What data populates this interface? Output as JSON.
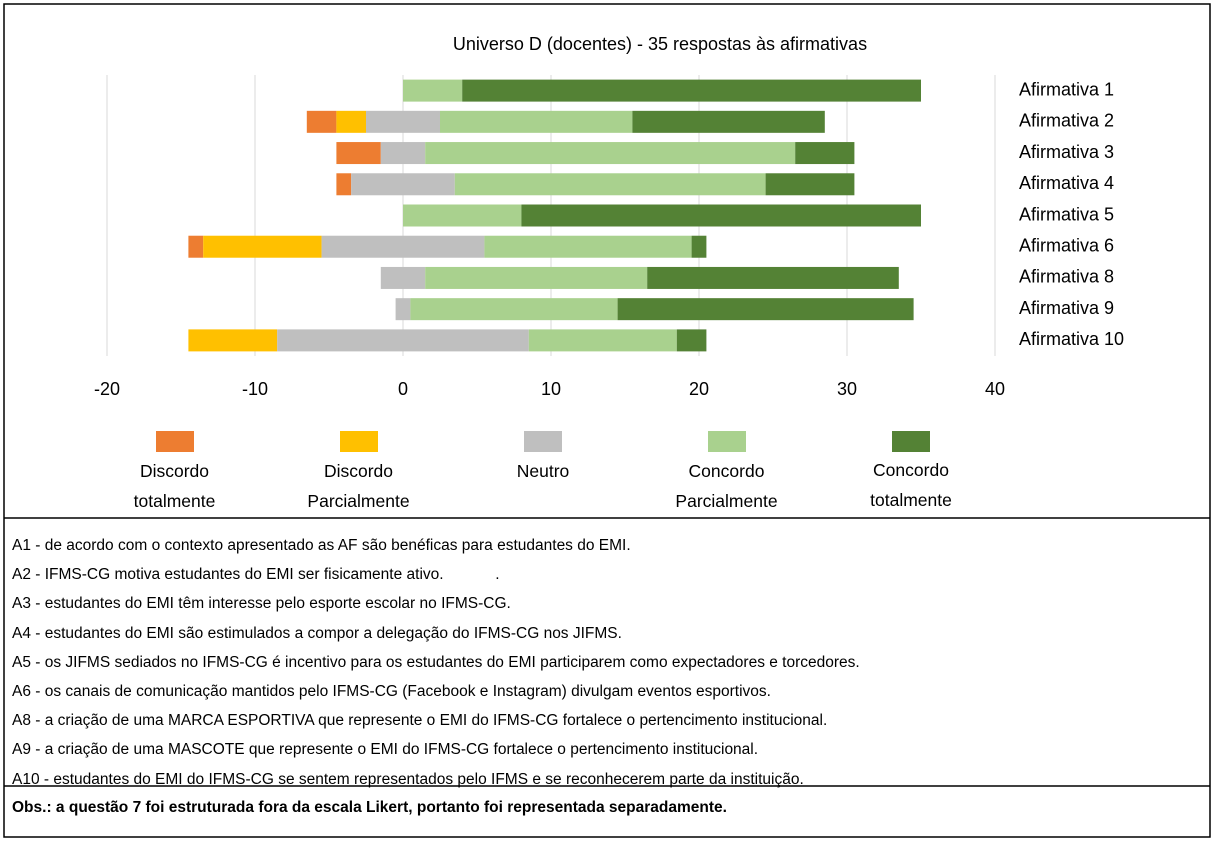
{
  "chart_data": {
    "type": "diverging-bar",
    "title": "Universo D (docentes) - 35 respostas às afirmativas",
    "categories": [
      "Afirmativa 1",
      "Afirmativa 2",
      "Afirmativa 3",
      "Afirmativa 4",
      "Afirmativa 5",
      "Afirmativa 6",
      "Afirmativa 8",
      "Afirmativa 9",
      "Afirmativa 10"
    ],
    "series": [
      {
        "name": "Discordo totalmente",
        "color": "#ed7d31",
        "values": [
          0,
          2,
          3,
          1,
          0,
          1,
          0,
          0,
          0
        ]
      },
      {
        "name": "Discordo Parcialmente",
        "color": "#ffc000",
        "values": [
          0,
          2,
          0,
          0,
          0,
          8,
          0,
          0,
          6
        ]
      },
      {
        "name": "Neutro",
        "color": "#bfbfbf",
        "values": [
          0,
          5,
          3,
          7,
          0,
          11,
          3,
          1,
          17
        ]
      },
      {
        "name": "Concordo Parcialmente",
        "color": "#a9d18e",
        "values": [
          4,
          13,
          25,
          21,
          8,
          14,
          15,
          14,
          10
        ]
      },
      {
        "name": "Concordo totalmente",
        "color": "#548235",
        "values": [
          31,
          13,
          4,
          6,
          27,
          1,
          17,
          20,
          2
        ]
      }
    ],
    "xlim": [
      -20,
      40
    ],
    "xticks": [
      -20,
      -10,
      0,
      10,
      20,
      30,
      40
    ],
    "grid": true,
    "legend": "bottom"
  },
  "notes": [
    "A1 - de acordo com o contexto apresentado as AF são benéficas para estudantes do EMI.",
    "A2 - IFMS-CG motiva estudantes do EMI ser fisicamente ativo.            .",
    "A3 - estudantes do EMI têm interesse pelo esporte escolar no IFMS-CG.",
    "A4 - estudantes do EMI são estimulados a compor a delegação do IFMS-CG nos JIFMS.",
    "A5 - os JIFMS sediados no IFMS-CG é incentivo para os estudantes do EMI participarem como expectadores e torcedores.",
    "A6 - os canais de comunicação mantidos pelo IFMS-CG (Facebook e Instagram) divulgam eventos esportivos.",
    "A8 - a criação de uma MARCA ESPORTIVA que represente o EMI do IFMS-CG fortalece o pertencimento institucional.",
    "A9 - a criação de uma MASCOTE que represente o EMI do IFMS-CG fortalece o pertencimento institucional.",
    "A10 - estudantes do EMI do IFMS-CG se sentem representados pelo IFMS e se reconhecerem parte da instituição."
  ],
  "observation": "Obs.: a questão 7 foi estruturada fora da escala Likert, portanto foi representada separadamente."
}
